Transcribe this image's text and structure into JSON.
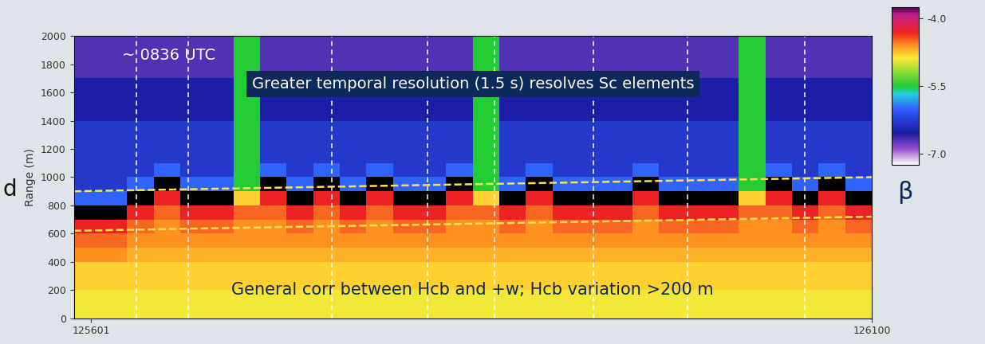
{
  "chart_data": {
    "type": "heatmap",
    "ylabel": "Range (m)",
    "annotations": [
      "~ 0836 UTC",
      "Greater temporal resolution (1.5 s) resolves Sc elements",
      "General corr between Hcb and +w; Hcb variation >200 m",
      "d"
    ],
    "colorbar_label": "β",
    "xlim": [
      125590,
      126100
    ],
    "xticks": [
      125601,
      126100
    ],
    "ylim": [
      0,
      2000
    ],
    "yticks": [
      0,
      200,
      400,
      600,
      800,
      1000,
      1200,
      1400,
      1600,
      1800,
      2000
    ],
    "clim": [
      -7.25,
      -3.75
    ],
    "colorbar_ticks": [
      -4.0,
      -5.5,
      -7.0
    ],
    "x_edges": [
      125590,
      125607,
      125624,
      125641,
      125658,
      125675,
      125692,
      125709,
      125726,
      125743,
      125760,
      125777,
      125794,
      125811,
      125828,
      125845,
      125862,
      125879,
      125896,
      125913,
      125930,
      125947,
      125964,
      125981,
      125998,
      126015,
      126032,
      126049,
      126066,
      126083,
      126100
    ],
    "y_edges": [
      0,
      100,
      200,
      300,
      400,
      500,
      600,
      700,
      800,
      900,
      1000,
      1100,
      1200,
      1300,
      1400,
      1500,
      1600,
      1700,
      1800,
      1900,
      2000
    ],
    "cells": [
      [
        -4.9,
        -4.9,
        -4.9,
        -4.9,
        -4.9,
        -4.9,
        -4.9,
        -4.9,
        -4.9,
        -4.9,
        -4.9,
        -4.9,
        -4.9,
        -4.9,
        -4.9,
        -4.9,
        -4.9,
        -4.9,
        -4.9,
        -4.9,
        -4.9,
        -4.9,
        -4.9,
        -4.9,
        -4.9,
        -4.9,
        -4.9,
        -4.9,
        -4.9,
        -4.9
      ],
      [
        -4.9,
        -4.9,
        -4.9,
        -4.9,
        -4.9,
        -4.9,
        -4.9,
        -4.9,
        -4.9,
        -4.9,
        -4.9,
        -4.9,
        -4.9,
        -4.9,
        -4.9,
        -4.9,
        -4.9,
        -4.9,
        -4.9,
        -4.9,
        -4.9,
        -4.9,
        -4.9,
        -4.9,
        -4.9,
        -4.9,
        -4.9,
        -4.9,
        -4.9,
        -4.9
      ],
      [
        -4.8,
        -4.8,
        -4.8,
        -4.8,
        -4.8,
        -4.8,
        -4.8,
        -4.8,
        -4.8,
        -4.8,
        -4.8,
        -4.8,
        -4.8,
        -4.8,
        -4.8,
        -4.8,
        -4.8,
        -4.8,
        -4.8,
        -4.8,
        -4.8,
        -4.8,
        -4.8,
        -4.8,
        -4.8,
        -4.8,
        -4.8,
        -4.8,
        -4.8,
        -4.8
      ],
      [
        -4.8,
        -4.8,
        -4.8,
        -4.8,
        -4.8,
        -4.8,
        -4.8,
        -4.8,
        -4.8,
        -4.8,
        -4.8,
        -4.8,
        -4.8,
        -4.8,
        -4.8,
        -4.8,
        -4.8,
        -4.8,
        -4.8,
        -4.8,
        -4.8,
        -4.8,
        -4.8,
        -4.8,
        -4.8,
        -4.8,
        -4.8,
        -4.8,
        -4.8,
        -4.8
      ],
      [
        -4.6,
        -4.6,
        -4.7,
        -4.7,
        -4.7,
        -4.7,
        -4.7,
        -4.7,
        -4.7,
        -4.7,
        -4.7,
        -4.7,
        -4.7,
        -4.7,
        -4.7,
        -4.7,
        -4.7,
        -4.7,
        -4.7,
        -4.7,
        -4.7,
        -4.7,
        -4.7,
        -4.7,
        -4.7,
        -4.7,
        -4.7,
        -4.7,
        -4.7,
        -4.7
      ],
      [
        -4.5,
        -4.5,
        -4.6,
        -4.6,
        -4.6,
        -4.6,
        -4.6,
        -4.6,
        -4.6,
        -4.6,
        -4.6,
        -4.6,
        -4.6,
        -4.6,
        -4.6,
        -4.6,
        -4.6,
        -4.6,
        -4.6,
        -4.6,
        -4.6,
        -4.6,
        -4.6,
        -4.6,
        -4.6,
        -4.6,
        -4.6,
        -4.6,
        -4.6,
        -4.6
      ],
      [
        -4.3,
        -4.3,
        -4.5,
        -4.6,
        -4.5,
        -4.5,
        -4.6,
        -4.6,
        -4.5,
        -4.6,
        -4.5,
        -4.6,
        -4.5,
        -4.5,
        -4.6,
        -4.6,
        -4.5,
        -4.6,
        -4.5,
        -4.5,
        -4.5,
        -4.6,
        -4.5,
        -4.5,
        -4.5,
        -4.6,
        -4.6,
        -4.5,
        -4.6,
        -4.5
      ],
      [
        -3.7,
        -3.7,
        -4.3,
        -4.5,
        -4.3,
        -4.3,
        -4.5,
        -4.5,
        -4.3,
        -4.5,
        -4.3,
        -4.5,
        -4.3,
        -4.3,
        -4.5,
        -4.5,
        -4.3,
        -4.5,
        -4.3,
        -4.3,
        -4.3,
        -4.5,
        -4.3,
        -4.3,
        -4.3,
        -4.5,
        -4.5,
        -4.3,
        -4.5,
        -4.3
      ],
      [
        -6.0,
        -6.0,
        -3.7,
        -4.3,
        -3.7,
        -3.7,
        -4.8,
        -4.3,
        -3.7,
        -4.3,
        -3.7,
        -4.3,
        -3.7,
        -3.7,
        -4.3,
        -4.8,
        -3.7,
        -4.3,
        -3.7,
        -3.7,
        -3.7,
        -4.3,
        -3.7,
        -3.7,
        -3.7,
        -4.8,
        -4.3,
        -3.7,
        -4.3,
        -3.7
      ],
      [
        -6.3,
        -6.3,
        -6.0,
        -3.7,
        -6.0,
        -6.0,
        -5.5,
        -3.7,
        -6.0,
        -3.7,
        -6.0,
        -3.7,
        -6.0,
        -6.0,
        -3.7,
        -5.5,
        -6.0,
        -3.7,
        -6.0,
        -6.0,
        -6.0,
        -3.7,
        -6.0,
        -6.0,
        -6.0,
        -5.5,
        -3.7,
        -6.0,
        -3.7,
        -6.0
      ],
      [
        -6.3,
        -6.3,
        -6.3,
        -6.0,
        -6.3,
        -6.3,
        -5.5,
        -6.0,
        -6.3,
        -6.0,
        -6.3,
        -6.0,
        -6.3,
        -6.3,
        -6.0,
        -5.5,
        -6.3,
        -6.0,
        -6.3,
        -6.3,
        -6.3,
        -6.0,
        -6.3,
        -6.3,
        -6.3,
        -5.5,
        -6.0,
        -6.3,
        -6.0,
        -6.3
      ],
      [
        -6.3,
        -6.3,
        -6.3,
        -6.3,
        -6.3,
        -6.3,
        -5.5,
        -6.3,
        -6.3,
        -6.3,
        -6.3,
        -6.3,
        -6.3,
        -6.3,
        -6.3,
        -5.5,
        -6.3,
        -6.3,
        -6.3,
        -6.3,
        -6.3,
        -6.3,
        -6.3,
        -6.3,
        -6.3,
        -5.5,
        -6.3,
        -6.3,
        -6.3,
        -6.3
      ],
      [
        -6.3,
        -6.3,
        -6.3,
        -6.3,
        -6.3,
        -6.3,
        -5.5,
        -6.3,
        -6.3,
        -6.3,
        -6.3,
        -6.3,
        -6.3,
        -6.3,
        -6.3,
        -5.5,
        -6.3,
        -6.3,
        -6.3,
        -6.3,
        -6.3,
        -6.3,
        -6.3,
        -6.3,
        -6.3,
        -5.5,
        -6.3,
        -6.3,
        -6.3,
        -6.3
      ],
      [
        -6.3,
        -6.3,
        -6.3,
        -6.3,
        -6.3,
        -6.3,
        -5.5,
        -6.3,
        -6.3,
        -6.3,
        -6.3,
        -6.3,
        -6.3,
        -6.3,
        -6.3,
        -5.5,
        -6.3,
        -6.3,
        -6.3,
        -6.3,
        -6.3,
        -6.3,
        -6.3,
        -6.3,
        -6.3,
        -5.5,
        -6.3,
        -6.3,
        -6.3,
        -6.3
      ],
      [
        -6.5,
        -6.5,
        -6.5,
        -6.5,
        -6.5,
        -6.5,
        -5.5,
        -6.5,
        -6.5,
        -6.5,
        -6.5,
        -6.5,
        -6.5,
        -6.5,
        -6.5,
        -5.5,
        -6.5,
        -6.5,
        -6.5,
        -6.5,
        -6.5,
        -6.5,
        -6.5,
        -6.5,
        -6.5,
        -5.5,
        -6.5,
        -6.5,
        -6.5,
        -6.5
      ],
      [
        -6.5,
        -6.5,
        -6.5,
        -6.5,
        -6.5,
        -6.5,
        -5.5,
        -6.5,
        -6.5,
        -6.5,
        -6.5,
        -6.5,
        -6.5,
        -6.5,
        -6.5,
        -5.5,
        -6.5,
        -6.5,
        -6.5,
        -6.5,
        -6.5,
        -6.5,
        -6.5,
        -6.5,
        -6.5,
        -5.5,
        -6.5,
        -6.5,
        -6.5,
        -6.5
      ],
      [
        -6.5,
        -6.5,
        -6.5,
        -6.5,
        -6.5,
        -6.5,
        -5.5,
        -6.5,
        -6.5,
        -6.5,
        -6.5,
        -6.5,
        -6.5,
        -6.5,
        -6.5,
        -5.5,
        -6.5,
        -6.5,
        -6.5,
        -6.5,
        -6.5,
        -6.5,
        -6.5,
        -6.5,
        -6.5,
        -5.5,
        -6.5,
        -6.5,
        -6.5,
        -6.5
      ],
      [
        -6.7,
        -6.7,
        -6.7,
        -6.7,
        -6.7,
        -6.7,
        -5.5,
        -6.7,
        -6.7,
        -6.7,
        -6.7,
        -6.7,
        -6.7,
        -6.7,
        -6.7,
        -5.5,
        -6.7,
        -6.7,
        -6.7,
        -6.7,
        -6.7,
        -6.7,
        -6.7,
        -6.7,
        -6.7,
        -5.5,
        -6.7,
        -6.7,
        -6.7,
        -6.7
      ],
      [
        -6.7,
        -6.7,
        -6.7,
        -6.7,
        -6.7,
        -6.7,
        -5.5,
        -6.7,
        -6.7,
        -6.7,
        -6.7,
        -6.7,
        -6.7,
        -6.7,
        -6.7,
        -5.5,
        -6.7,
        -6.7,
        -6.7,
        -6.7,
        -6.7,
        -6.7,
        -6.7,
        -6.7,
        -6.7,
        -5.5,
        -6.7,
        -6.7,
        -6.7,
        -6.7
      ],
      [
        -6.7,
        -6.7,
        -6.7,
        -6.7,
        -6.7,
        -6.7,
        -5.5,
        -6.7,
        -6.7,
        -6.7,
        -6.7,
        -6.7,
        -6.7,
        -6.7,
        -6.7,
        -5.5,
        -6.7,
        -6.7,
        -6.7,
        -6.7,
        -6.7,
        -6.7,
        -6.7,
        -6.7,
        -6.7,
        -5.5,
        -6.7,
        -6.7,
        -6.7,
        -6.7
      ]
    ],
    "vertical_markers": [
      125630,
      125663,
      125755,
      125816,
      125859,
      125922,
      125982,
      126057
    ],
    "cloud_base_bounds": [
      {
        "x": [
          125590,
          126100
        ],
        "y": [
          900,
          1000
        ]
      },
      {
        "x": [
          125590,
          126100
        ],
        "y": [
          620,
          720
        ]
      }
    ]
  }
}
